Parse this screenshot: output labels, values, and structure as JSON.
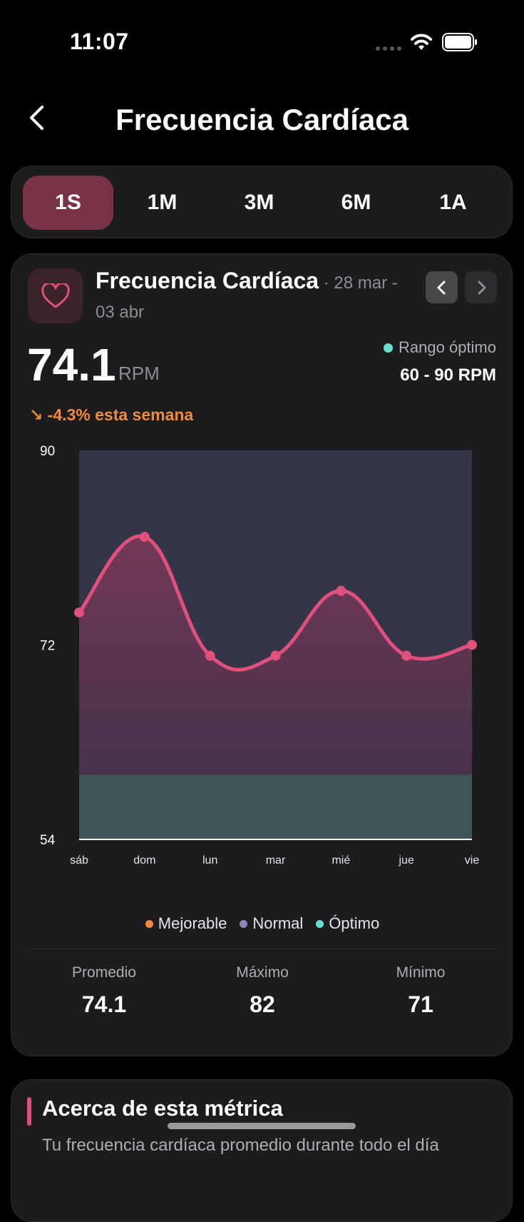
{
  "status": {
    "time": "11:07"
  },
  "header": {
    "title": "Frecuencia Cardíaca"
  },
  "tabs": [
    {
      "label": "1S",
      "active": true
    },
    {
      "label": "1M",
      "active": false
    },
    {
      "label": "3M",
      "active": false
    },
    {
      "label": "6M",
      "active": false
    },
    {
      "label": "1A",
      "active": false
    }
  ],
  "card": {
    "metric_name": "Frecuencia Cardíaca",
    "separator": " · ",
    "date_range": "28 mar - 03 abr",
    "value": "74.1",
    "unit": "RPM",
    "optimal_label": "Rango óptimo",
    "optimal_range": "60 - 90 RPM",
    "trend": "↘ -4.3% esta semana"
  },
  "chart_data": {
    "type": "line",
    "categories": [
      "sáb",
      "dom",
      "lun",
      "mar",
      "mié",
      "jue",
      "vie"
    ],
    "series": [
      {
        "values": [
          75,
          82,
          71,
          71,
          77,
          71,
          72
        ]
      }
    ],
    "ylim": [
      54,
      90
    ],
    "yticks": [
      "90",
      "72",
      "54"
    ],
    "bands": [
      {
        "name": "Óptimo",
        "from": 54,
        "to": 60,
        "color": "#3d5556"
      },
      {
        "name": "Normal",
        "from": 60,
        "to": 90,
        "color": "#343547"
      }
    ],
    "line_color": "#e0507c",
    "grid": false
  },
  "legend": [
    {
      "label": "Mejorable",
      "color": "#f08a3c"
    },
    {
      "label": "Normal",
      "color": "#8a8ab8"
    },
    {
      "label": "Óptimo",
      "color": "#64e0d0"
    }
  ],
  "stats": [
    {
      "label": "Promedio",
      "value": "74.1"
    },
    {
      "label": "Máximo",
      "value": "82"
    },
    {
      "label": "Mínimo",
      "value": "71"
    }
  ],
  "about": {
    "title": "Acerca de esta métrica",
    "text": "Tu frecuencia cardíaca promedio durante todo el día"
  }
}
